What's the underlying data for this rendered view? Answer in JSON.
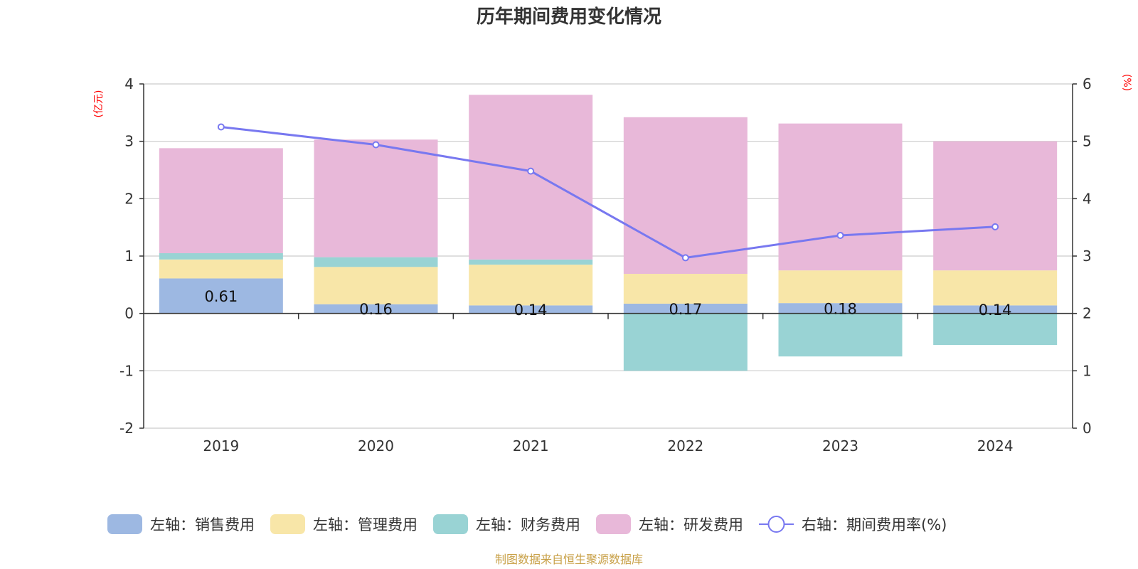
{
  "chart_data": {
    "type": "bar",
    "title": "历年期间费用变化情况",
    "categories": [
      "2019",
      "2020",
      "2021",
      "2022",
      "2023",
      "2024"
    ],
    "left_axis": {
      "unit": "(亿元)",
      "ylim": [
        -2,
        4
      ],
      "ticks": [
        "-2",
        "-1",
        "0",
        "1",
        "2",
        "3",
        "4"
      ]
    },
    "right_axis": {
      "unit": "(%)",
      "ylim": [
        0,
        6
      ],
      "ticks": [
        "0",
        "1",
        "2",
        "3",
        "4",
        "5",
        "6"
      ]
    },
    "series": [
      {
        "name": "左轴：销售费用",
        "type": "bar",
        "axis": "left",
        "color": "#9db8e2",
        "values": [
          0.61,
          0.16,
          0.14,
          0.17,
          0.18,
          0.14
        ],
        "labels": [
          "0.61",
          "0.16",
          "0.14",
          "0.17",
          "0.18",
          "0.14"
        ]
      },
      {
        "name": "左轴：管理费用",
        "type": "bar",
        "axis": "left",
        "color": "#f8e6a8",
        "values": [
          0.33,
          0.65,
          0.71,
          0.52,
          0.57,
          0.61
        ]
      },
      {
        "name": "左轴：财务费用",
        "type": "bar",
        "axis": "left",
        "color": "#99d3d4",
        "values": [
          0.11,
          0.17,
          0.09,
          -1.0,
          -0.75,
          -0.55
        ]
      },
      {
        "name": "左轴：研发费用",
        "type": "bar",
        "axis": "left",
        "color": "#e8b8d9",
        "values": [
          1.83,
          2.05,
          2.87,
          2.73,
          2.56,
          2.25
        ]
      },
      {
        "name": "右轴：期间费用率(%)",
        "type": "line",
        "axis": "right",
        "color": "#7878f0",
        "values": [
          5.25,
          4.94,
          4.48,
          2.97,
          3.36,
          3.51
        ]
      }
    ],
    "grid": true,
    "legend_position": "bottom"
  },
  "footer": {
    "source": "制图数据来自恒生聚源数据库"
  }
}
